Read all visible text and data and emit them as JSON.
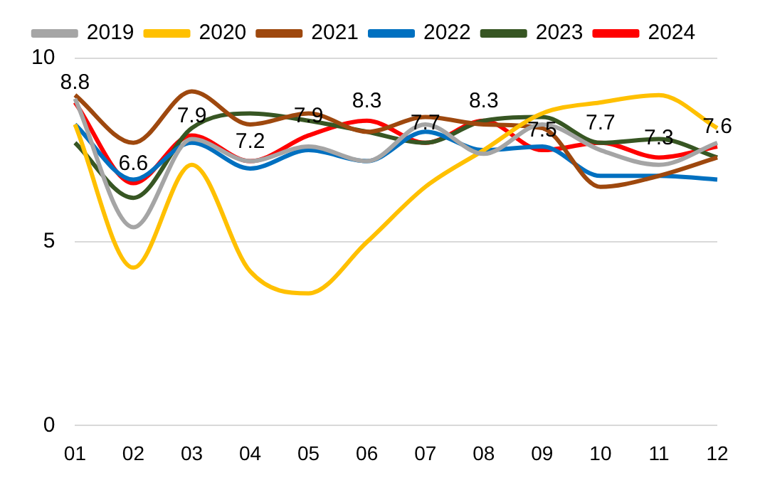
{
  "chart_data": {
    "type": "line",
    "categories": [
      "01",
      "02",
      "03",
      "04",
      "05",
      "06",
      "07",
      "08",
      "09",
      "10",
      "11",
      "12"
    ],
    "ylim": [
      0,
      10
    ],
    "yticks": [
      0,
      5,
      10
    ],
    "grid": "y",
    "legend": "top",
    "marker": "none",
    "line_style": "solid",
    "series": [
      {
        "name": "2019",
        "color": "#a5a5a5",
        "values": [
          8.9,
          5.4,
          7.8,
          7.2,
          7.6,
          7.2,
          8.2,
          7.4,
          8.2,
          7.5,
          7.1,
          7.7
        ]
      },
      {
        "name": "2020",
        "color": "#ffc000",
        "values": [
          8.2,
          4.3,
          7.1,
          4.2,
          3.6,
          5.0,
          6.5,
          7.5,
          8.5,
          8.8,
          9.0,
          8.1
        ]
      },
      {
        "name": "2021",
        "color": "#9e480e",
        "values": [
          9.0,
          7.7,
          9.1,
          8.2,
          8.5,
          8.0,
          8.4,
          8.2,
          8.1,
          6.5,
          6.8,
          7.3
        ]
      },
      {
        "name": "2022",
        "color": "#0070c0",
        "values": [
          8.2,
          6.7,
          7.7,
          7.0,
          7.5,
          7.2,
          8.0,
          7.5,
          7.6,
          6.8,
          6.8,
          6.7
        ]
      },
      {
        "name": "2023",
        "color": "#375623",
        "values": [
          7.7,
          6.2,
          8.1,
          8.5,
          8.3,
          8.0,
          7.7,
          8.3,
          8.4,
          7.7,
          7.8,
          7.3
        ]
      },
      {
        "name": "2024",
        "color": "#ff0000",
        "values": [
          8.8,
          6.6,
          7.9,
          7.2,
          7.9,
          8.3,
          7.7,
          8.3,
          7.5,
          7.7,
          7.3,
          7.6
        ],
        "value_labels": [
          "8.8",
          "6.6",
          "7.9",
          "7.2",
          "7.9",
          "8.3",
          "7.7",
          "8.3",
          "7.5",
          "7.7",
          "7.3",
          "7.6"
        ]
      }
    ]
  }
}
